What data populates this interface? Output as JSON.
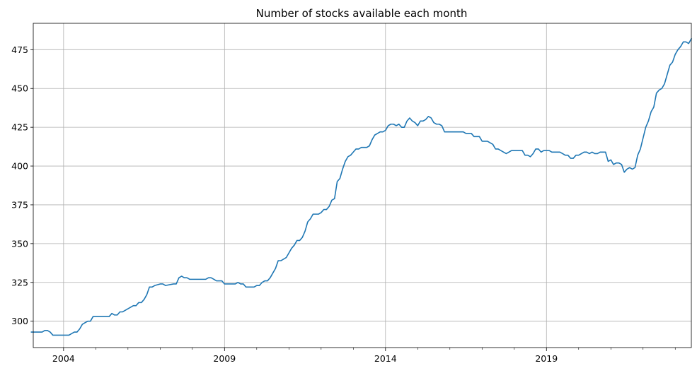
{
  "chart_data": {
    "type": "line",
    "title": "Number of stocks available each month",
    "xlabel": "",
    "ylabel": "",
    "x_ticks": [
      "2004",
      "2009",
      "2014",
      "2019"
    ],
    "y_ticks": [
      "300",
      "325",
      "350",
      "375",
      "400",
      "425",
      "450",
      "475"
    ],
    "xlim": [
      "2003-01",
      "2023-02"
    ],
    "ylim": [
      283,
      492
    ],
    "grid": true,
    "line_color": "#1f77b4",
    "series": [
      {
        "points": [
          [
            "2003-01",
            293
          ],
          [
            "2003-05",
            293
          ],
          [
            "2003-06",
            294
          ],
          [
            "2003-07",
            294
          ],
          [
            "2003-08",
            293
          ],
          [
            "2003-09",
            291
          ],
          [
            "2003-12",
            291
          ],
          [
            "2004-03",
            291
          ],
          [
            "2004-05",
            293
          ],
          [
            "2004-06",
            293
          ],
          [
            "2004-07",
            295
          ],
          [
            "2004-08",
            298
          ],
          [
            "2004-09",
            299
          ],
          [
            "2004-10",
            300
          ],
          [
            "2004-11",
            300
          ],
          [
            "2004-12",
            303
          ],
          [
            "2005-03",
            303
          ],
          [
            "2005-06",
            303
          ],
          [
            "2005-07",
            305
          ],
          [
            "2005-08",
            304
          ],
          [
            "2005-09",
            304
          ],
          [
            "2005-10",
            306
          ],
          [
            "2005-11",
            306
          ],
          [
            "2006-01",
            308
          ],
          [
            "2006-03",
            310
          ],
          [
            "2006-04",
            310
          ],
          [
            "2006-05",
            312
          ],
          [
            "2006-06",
            312
          ],
          [
            "2006-07",
            314
          ],
          [
            "2006-08",
            317
          ],
          [
            "2006-09",
            322
          ],
          [
            "2006-10",
            322
          ],
          [
            "2006-11",
            323
          ],
          [
            "2007-01",
            324
          ],
          [
            "2007-02",
            324
          ],
          [
            "2007-03",
            323
          ],
          [
            "2007-06",
            324
          ],
          [
            "2007-07",
            324
          ],
          [
            "2007-08",
            328
          ],
          [
            "2007-09",
            329
          ],
          [
            "2007-10",
            328
          ],
          [
            "2007-11",
            328
          ],
          [
            "2007-12",
            327
          ],
          [
            "2008-06",
            327
          ],
          [
            "2008-07",
            328
          ],
          [
            "2008-08",
            328
          ],
          [
            "2008-09",
            327
          ],
          [
            "2008-10",
            326
          ],
          [
            "2008-12",
            326
          ],
          [
            "2009-01",
            324
          ],
          [
            "2009-05",
            324
          ],
          [
            "2009-06",
            325
          ],
          [
            "2009-07",
            324
          ],
          [
            "2009-08",
            324
          ],
          [
            "2009-09",
            322
          ],
          [
            "2009-12",
            322
          ],
          [
            "2010-01",
            323
          ],
          [
            "2010-02",
            323
          ],
          [
            "2010-03",
            325
          ],
          [
            "2010-04",
            326
          ],
          [
            "2010-05",
            326
          ],
          [
            "2010-06",
            328
          ],
          [
            "2010-07",
            331
          ],
          [
            "2010-08",
            334
          ],
          [
            "2010-09",
            339
          ],
          [
            "2010-10",
            339
          ],
          [
            "2010-11",
            340
          ],
          [
            "2010-12",
            341
          ],
          [
            "2011-01",
            344
          ],
          [
            "2011-02",
            347
          ],
          [
            "2011-03",
            349
          ],
          [
            "2011-04",
            352
          ],
          [
            "2011-05",
            352
          ],
          [
            "2011-06",
            354
          ],
          [
            "2011-07",
            358
          ],
          [
            "2011-08",
            364
          ],
          [
            "2011-09",
            366
          ],
          [
            "2011-10",
            369
          ],
          [
            "2011-12",
            369
          ],
          [
            "2012-01",
            370
          ],
          [
            "2012-02",
            372
          ],
          [
            "2012-03",
            372
          ],
          [
            "2012-04",
            374
          ],
          [
            "2012-05",
            378
          ],
          [
            "2012-06",
            379
          ],
          [
            "2012-07",
            390
          ],
          [
            "2012-08",
            392
          ],
          [
            "2012-09",
            398
          ],
          [
            "2012-10",
            403
          ],
          [
            "2012-11",
            406
          ],
          [
            "2012-12",
            407
          ],
          [
            "2013-01",
            409
          ],
          [
            "2013-02",
            411
          ],
          [
            "2013-03",
            411
          ],
          [
            "2013-04",
            412
          ],
          [
            "2013-06",
            412
          ],
          [
            "2013-07",
            413
          ],
          [
            "2013-08",
            417
          ],
          [
            "2013-09",
            420
          ],
          [
            "2013-10",
            421
          ],
          [
            "2013-11",
            422
          ],
          [
            "2013-12",
            422
          ],
          [
            "2014-01",
            423
          ],
          [
            "2014-02",
            426
          ],
          [
            "2014-03",
            427
          ],
          [
            "2014-04",
            427
          ],
          [
            "2014-05",
            426
          ],
          [
            "2014-06",
            427
          ],
          [
            "2014-07",
            425
          ],
          [
            "2014-08",
            425
          ],
          [
            "2014-09",
            429
          ],
          [
            "2014-10",
            431
          ],
          [
            "2014-11",
            429
          ],
          [
            "2014-12",
            428
          ],
          [
            "2015-01",
            426
          ],
          [
            "2015-02",
            429
          ],
          [
            "2015-03",
            429
          ],
          [
            "2015-04",
            430
          ],
          [
            "2015-05",
            432
          ],
          [
            "2015-06",
            431
          ],
          [
            "2015-07",
            428
          ],
          [
            "2015-08",
            427
          ],
          [
            "2015-09",
            427
          ],
          [
            "2015-10",
            426
          ],
          [
            "2015-11",
            422
          ],
          [
            "2016-06",
            422
          ],
          [
            "2016-07",
            421
          ],
          [
            "2016-09",
            421
          ],
          [
            "2016-10",
            419
          ],
          [
            "2016-12",
            419
          ],
          [
            "2017-01",
            416
          ],
          [
            "2017-03",
            416
          ],
          [
            "2017-05",
            414
          ],
          [
            "2017-06",
            411
          ],
          [
            "2017-07",
            411
          ],
          [
            "2017-09",
            409
          ],
          [
            "2017-10",
            408
          ],
          [
            "2017-11",
            409
          ],
          [
            "2017-12",
            410
          ],
          [
            "2018-04",
            410
          ],
          [
            "2018-05",
            407
          ],
          [
            "2018-06",
            407
          ],
          [
            "2018-07",
            406
          ],
          [
            "2018-08",
            408
          ],
          [
            "2018-09",
            411
          ],
          [
            "2018-10",
            411
          ],
          [
            "2018-11",
            409
          ],
          [
            "2018-12",
            410
          ],
          [
            "2019-02",
            410
          ],
          [
            "2019-03",
            409
          ],
          [
            "2019-06",
            409
          ],
          [
            "2019-07",
            408
          ],
          [
            "2019-08",
            407
          ],
          [
            "2019-09",
            407
          ],
          [
            "2019-10",
            405
          ],
          [
            "2019-11",
            405
          ],
          [
            "2019-12",
            407
          ],
          [
            "2020-01",
            407
          ],
          [
            "2020-03",
            409
          ],
          [
            "2020-04",
            409
          ],
          [
            "2020-05",
            408
          ],
          [
            "2020-06",
            409
          ],
          [
            "2020-07",
            408
          ],
          [
            "2020-08",
            408
          ],
          [
            "2020-09",
            409
          ],
          [
            "2020-11",
            409
          ],
          [
            "2020-12",
            403
          ],
          [
            "2021-01",
            404
          ],
          [
            "2021-02",
            401
          ],
          [
            "2021-03",
            402
          ],
          [
            "2021-04",
            402
          ],
          [
            "2021-05",
            401
          ],
          [
            "2021-06",
            396
          ],
          [
            "2021-07",
            398
          ],
          [
            "2021-08",
            399
          ],
          [
            "2021-09",
            398
          ],
          [
            "2021-10",
            399
          ],
          [
            "2021-11",
            407
          ],
          [
            "2021-12",
            411
          ],
          [
            "2022-01",
            418
          ],
          [
            "2022-02",
            425
          ],
          [
            "2022-03",
            429
          ],
          [
            "2022-04",
            435
          ],
          [
            "2022-05",
            438
          ],
          [
            "2022-06",
            447
          ],
          [
            "2022-07",
            449
          ],
          [
            "2022-08",
            450
          ],
          [
            "2022-09",
            453
          ],
          [
            "2022-10",
            459
          ],
          [
            "2022-11",
            465
          ],
          [
            "2022-12",
            467
          ],
          [
            "2023-01",
            472
          ],
          [
            "2023-02",
            475
          ],
          [
            "2023-03",
            477
          ],
          [
            "2023-04",
            480
          ],
          [
            "2023-05",
            480
          ],
          [
            "2023-06",
            479
          ],
          [
            "2023-07",
            482
          ]
        ]
      }
    ]
  }
}
